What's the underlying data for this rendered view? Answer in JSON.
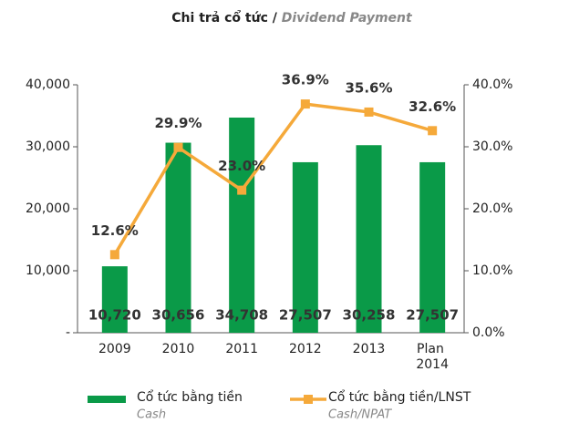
{
  "chart_data": {
    "type": "bar_line",
    "title": "Chi trả cổ tức /",
    "title_en": "Dividend Payment",
    "categories": [
      "2009",
      "2010",
      "2011",
      "2012",
      "2013",
      "Plan 2014"
    ],
    "series": [
      {
        "name": "Cổ tức bằng tiền",
        "name_en": "Cash",
        "type": "bar",
        "color": "#0a9a48",
        "values": [
          10720,
          30656,
          34708,
          27507,
          30258,
          27507
        ],
        "value_labels": [
          "10,720",
          "30,656",
          "34,708",
          "27,507",
          "30,258",
          "27,507"
        ]
      },
      {
        "name": "Cổ tức bằng tiền/LNST",
        "name_en": "Cash/NPAT",
        "type": "line",
        "axis": "y2",
        "color": "#f5a93a",
        "values": [
          12.6,
          29.9,
          23.0,
          36.9,
          35.6,
          32.6
        ],
        "value_labels": [
          "12.6%",
          "29.9%",
          "23.0%",
          "36.9%",
          "35.6%",
          "32.6%"
        ]
      }
    ],
    "ylim": [
      0,
      40000
    ],
    "yticks": [
      {
        "value": 0,
        "label": "-"
      },
      {
        "value": 10000,
        "label": "10,000"
      },
      {
        "value": 20000,
        "label": "20,000"
      },
      {
        "value": 30000,
        "label": "30,000"
      },
      {
        "value": 40000,
        "label": "40,000"
      }
    ],
    "y2lim": [
      0,
      40
    ],
    "y2ticks": [
      {
        "value": 0,
        "label": "0.0%"
      },
      {
        "value": 10,
        "label": "10.0%"
      },
      {
        "value": 20,
        "label": "20.0%"
      },
      {
        "value": 30,
        "label": "30.0%"
      },
      {
        "value": 40,
        "label": "40.0%"
      }
    ],
    "legend": "bottom"
  }
}
